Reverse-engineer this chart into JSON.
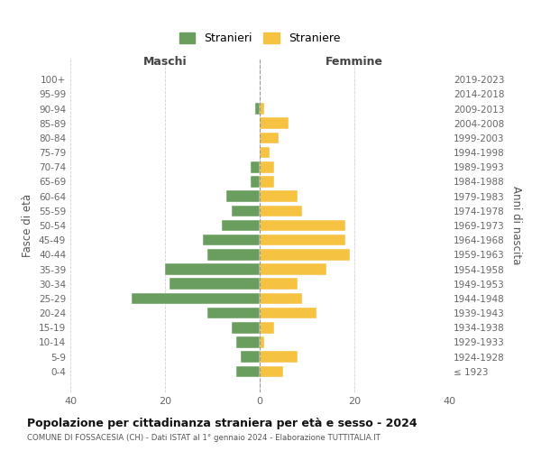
{
  "age_groups": [
    "100+",
    "95-99",
    "90-94",
    "85-89",
    "80-84",
    "75-79",
    "70-74",
    "65-69",
    "60-64",
    "55-59",
    "50-54",
    "45-49",
    "40-44",
    "35-39",
    "30-34",
    "25-29",
    "20-24",
    "15-19",
    "10-14",
    "5-9",
    "0-4"
  ],
  "birth_years": [
    "≤ 1923",
    "1924-1928",
    "1929-1933",
    "1934-1938",
    "1939-1943",
    "1944-1948",
    "1949-1953",
    "1954-1958",
    "1959-1963",
    "1964-1968",
    "1969-1973",
    "1974-1978",
    "1979-1983",
    "1984-1988",
    "1989-1993",
    "1994-1998",
    "1999-2003",
    "2004-2008",
    "2009-2013",
    "2014-2018",
    "2019-2023"
  ],
  "males": [
    0,
    0,
    1,
    0,
    0,
    0,
    2,
    2,
    7,
    6,
    8,
    12,
    11,
    20,
    19,
    27,
    11,
    6,
    5,
    4,
    5
  ],
  "females": [
    0,
    0,
    1,
    6,
    4,
    2,
    3,
    3,
    8,
    9,
    18,
    18,
    19,
    14,
    8,
    9,
    12,
    3,
    1,
    8,
    5
  ],
  "color_males": "#6a9e5e",
  "color_females": "#f5c242",
  "title": "Popolazione per cittadinanza straniera per età e sesso - 2024",
  "subtitle": "COMUNE DI FOSSACESIA (CH) - Dati ISTAT al 1° gennaio 2024 - Elaborazione TUTTITALIA.IT",
  "ylabel_left": "Fasce di età",
  "ylabel_right": "Anni di nascita",
  "xlabel_left": "Maschi",
  "xlabel_right": "Femmine",
  "legend_males": "Stranieri",
  "legend_females": "Straniere",
  "xlim": 40,
  "background_color": "#ffffff",
  "grid_color": "#cccccc"
}
